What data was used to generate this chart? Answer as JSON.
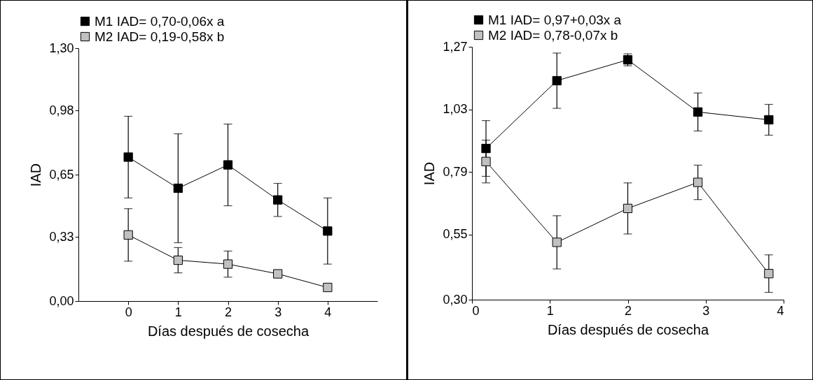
{
  "chart_data": [
    {
      "type": "line",
      "xlabel": "Días después de cosecha",
      "ylabel": "IAD",
      "x": [
        0,
        1,
        2,
        3,
        4
      ],
      "xlim": [
        -1,
        5
      ],
      "xticks": [
        0,
        1,
        2,
        3,
        4
      ],
      "ylim": [
        0,
        1.3
      ],
      "yticks": [
        {
          "value": 0,
          "label": "0,00"
        },
        {
          "value": 0.33,
          "label": "0,33"
        },
        {
          "value": 0.65,
          "label": "0,65"
        },
        {
          "value": 0.98,
          "label": "0,98"
        },
        {
          "value": 1.3,
          "label": "1,30"
        }
      ],
      "grid": false,
      "legend": "top",
      "marker": "square",
      "series": [
        {
          "name": "M1 IAD= 0,70-0,06x  a",
          "color": "#000000",
          "values": [
            0.74,
            0.58,
            0.7,
            0.52,
            0.36
          ],
          "errors": [
            0.21,
            0.28,
            0.21,
            0.085,
            0.17
          ]
        },
        {
          "name": "M2 IAD= 0,19-0,58x  b",
          "color": "#c0c0c0",
          "values": [
            0.34,
            0.21,
            0.19,
            0.14,
            0.07
          ],
          "errors": [
            0.135,
            0.065,
            0.067,
            null,
            null
          ]
        }
      ]
    },
    {
      "type": "line",
      "xlabel": "Días después de cosecha",
      "ylabel": "IAD",
      "x": [
        0.18,
        1.09,
        2.0,
        2.9,
        3.81
      ],
      "xlim": [
        0,
        4
      ],
      "xticks": [
        0,
        1,
        2,
        3,
        4
      ],
      "ylim": [
        0.3,
        1.27
      ],
      "yticks": [
        {
          "value": 0.3,
          "label": "0,30"
        },
        {
          "value": 0.55,
          "label": "0,55"
        },
        {
          "value": 0.79,
          "label": "0,79"
        },
        {
          "value": 1.03,
          "label": "1,03"
        },
        {
          "value": 1.27,
          "label": "1,27"
        }
      ],
      "grid": false,
      "legend": "top",
      "marker": "square",
      "series": [
        {
          "name": "M1 IAD= 0,97+0,03x  a",
          "color": "#000000",
          "values": [
            0.88,
            1.14,
            1.22,
            1.02,
            0.99
          ],
          "errors": [
            0.107,
            0.106,
            0.023,
            0.073,
            0.059
          ]
        },
        {
          "name": "M2 IAD= 0,78-0,07x  b",
          "color": "#c0c0c0",
          "values": [
            0.83,
            0.52,
            0.65,
            0.75,
            0.4
          ],
          "errors": [
            0.082,
            0.102,
            0.098,
            0.066,
            0.072
          ]
        }
      ]
    }
  ]
}
